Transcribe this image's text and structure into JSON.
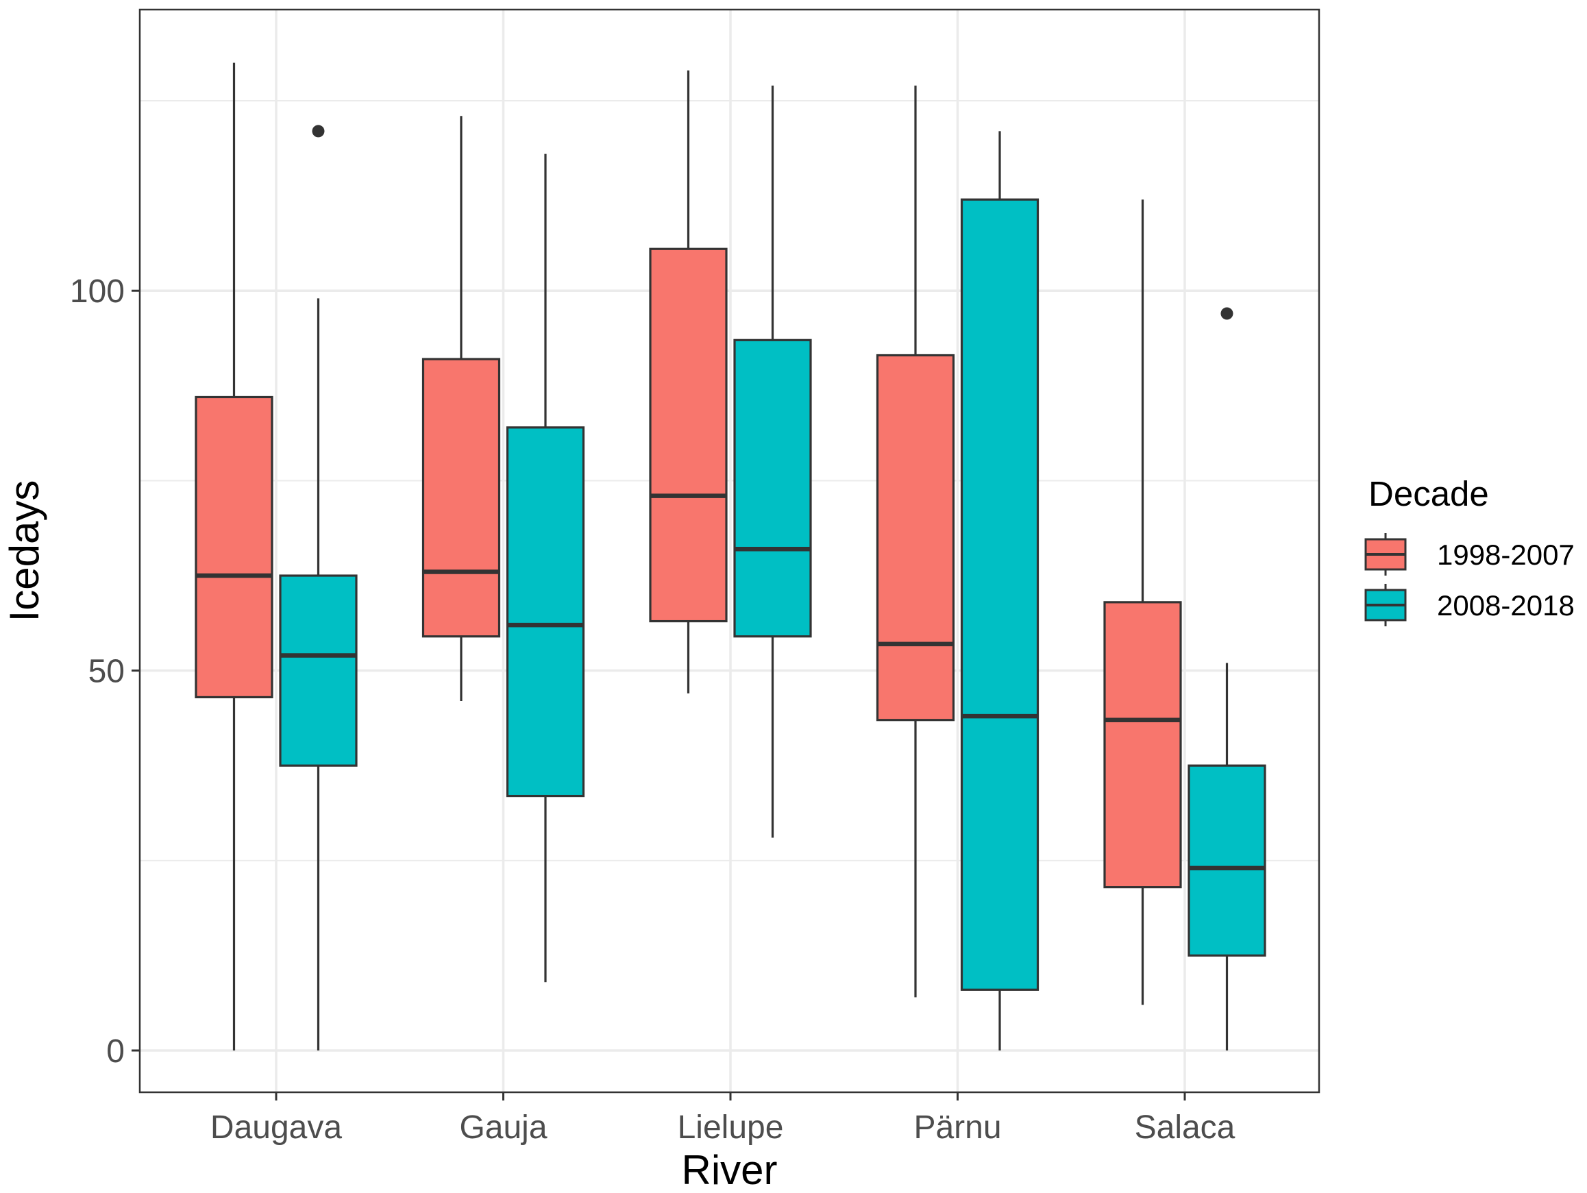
{
  "chart_data": {
    "type": "boxplot",
    "title": "",
    "xlabel": "River",
    "ylabel": "Icedays",
    "ylim": [
      -5.5,
      137
    ],
    "yticks": [
      0,
      50,
      100
    ],
    "categories": [
      "Daugava",
      "Gauja",
      "Lielupe",
      "Pärnu",
      "Salaca"
    ],
    "legend": {
      "title": "Decade",
      "position": "right",
      "entries": [
        "1998-2007",
        "2008-2018"
      ]
    },
    "colors": {
      "1998-2007": "#F8766D",
      "2008-2018": "#00BFC4",
      "outline": "#333333",
      "panel_border": "#333333",
      "grid": "#EBEBEB",
      "tick_text": "#4D4D4D",
      "title_text": "#000000"
    },
    "series": [
      {
        "name": "1998-2007",
        "boxes": [
          {
            "category": "Daugava",
            "min": 0,
            "q1": 46.5,
            "median": 62.5,
            "q3": 86,
            "max": 130,
            "outliers": []
          },
          {
            "category": "Gauja",
            "min": 46,
            "q1": 54.5,
            "median": 63,
            "q3": 91,
            "max": 123,
            "outliers": []
          },
          {
            "category": "Lielupe",
            "min": 47,
            "q1": 56.5,
            "median": 73,
            "q3": 105.5,
            "max": 129,
            "outliers": []
          },
          {
            "category": "Pärnu",
            "min": 7,
            "q1": 43.5,
            "median": 53.5,
            "q3": 91.5,
            "max": 127,
            "outliers": []
          },
          {
            "category": "Salaca",
            "min": 6,
            "q1": 21.5,
            "median": 43.5,
            "q3": 59,
            "max": 112,
            "outliers": []
          }
        ]
      },
      {
        "name": "2008-2018",
        "boxes": [
          {
            "category": "Daugava",
            "min": 0,
            "q1": 37.5,
            "median": 52,
            "q3": 62.5,
            "max": 99,
            "outliers": [
              121
            ]
          },
          {
            "category": "Gauja",
            "min": 9,
            "q1": 33.5,
            "median": 56,
            "q3": 82,
            "max": 118,
            "outliers": []
          },
          {
            "category": "Lielupe",
            "min": 28,
            "q1": 54.5,
            "median": 66,
            "q3": 93.5,
            "max": 127,
            "outliers": []
          },
          {
            "category": "Pärnu",
            "min": 0,
            "q1": 8,
            "median": 44,
            "q3": 112,
            "max": 121,
            "outliers": []
          },
          {
            "category": "Salaca",
            "min": 0,
            "q1": 12.5,
            "median": 24,
            "q3": 37.5,
            "max": 51,
            "outliers": [
              97
            ]
          }
        ]
      }
    ]
  }
}
